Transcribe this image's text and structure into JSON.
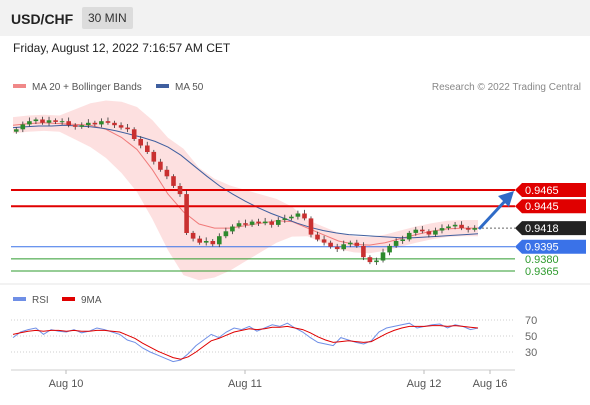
{
  "header": {
    "symbol": "USD/CHF",
    "timeframe": "30 MIN"
  },
  "timestamp": "Friday, August 12, 2022 7:16:57 AM CET",
  "legend": {
    "bb_label": "MA 20 + Bollinger Bands",
    "ma50_label": "MA 50",
    "copyright": "Research © 2022 Trading Central"
  },
  "rsi_legend": {
    "rsi_label": "RSI",
    "ma_label": "9MA"
  },
  "colors": {
    "resistance": "#e00000",
    "support_blue": "#3a72e8",
    "support_green": "#2e9b2e",
    "bb_fill": "#fcd6d6",
    "ma20": "#f07a7a",
    "ma50": "#3f5f9f",
    "candle_up": "#2d8a2d",
    "candle_down": "#c93030",
    "rsi": "#6f8fe6",
    "rsi_ma": "#e00000",
    "arrow": "#2f6bc7",
    "last_price": "#222222"
  },
  "chart_data": [
    {
      "type": "line",
      "title": "USD/CHF",
      "x_ticks": [
        "Aug 10",
        "Aug 11",
        "Aug 12",
        "Aug 16"
      ],
      "ylim": [
        0.935,
        0.955
      ],
      "levels": [
        {
          "label": "0.9465",
          "value": 0.9465,
          "kind": "resistance"
        },
        {
          "label": "0.9445",
          "value": 0.9445,
          "kind": "resistance"
        },
        {
          "label": "0.9395",
          "value": 0.9395,
          "kind": "support_blue"
        },
        {
          "label": "0.9380",
          "value": 0.938,
          "kind": "support_green"
        },
        {
          "label": "0.9365",
          "value": 0.9365,
          "kind": "support_green"
        }
      ],
      "last_price": {
        "label": "0.9418",
        "value": 0.9418
      },
      "series": [
        {
          "name": "Price",
          "values": [
            0.954,
            0.9546,
            0.955,
            0.9552,
            0.9548,
            0.9551,
            0.9549,
            0.955,
            0.9545,
            0.9543,
            0.9545,
            0.9548,
            0.9546,
            0.955,
            0.9548,
            0.9545,
            0.9542,
            0.954,
            0.9528,
            0.952,
            0.9512,
            0.95,
            0.949,
            0.9482,
            0.947,
            0.946,
            0.9412,
            0.9405,
            0.94,
            0.9402,
            0.9398,
            0.9408,
            0.9414,
            0.942,
            0.9424,
            0.9422,
            0.9426,
            0.9424,
            0.9426,
            0.9422,
            0.9428,
            0.943,
            0.9432,
            0.9436,
            0.943,
            0.941,
            0.9404,
            0.94,
            0.9395,
            0.9392,
            0.9398,
            0.94,
            0.9396,
            0.9382,
            0.9376,
            0.9378,
            0.9388,
            0.9396,
            0.9402,
            0.9404,
            0.9412,
            0.9416,
            0.9414,
            0.941,
            0.9415,
            0.9418,
            0.942,
            0.9422,
            0.9418,
            0.9416,
            0.9418
          ]
        },
        {
          "name": "MA 50",
          "values": [
            0.9542,
            0.9543,
            0.9544,
            0.9544,
            0.9545,
            0.9544,
            0.9543,
            0.9541,
            0.9538,
            0.9534,
            0.953,
            0.9525,
            0.9518,
            0.9508,
            0.9495,
            0.9482,
            0.947,
            0.946,
            0.9451,
            0.9443,
            0.9436,
            0.943,
            0.9424,
            0.9419,
            0.9415,
            0.9412,
            0.941,
            0.9409,
            0.9408,
            0.9407,
            0.9406,
            0.9406,
            0.9407,
            0.9408,
            0.9409,
            0.941,
            0.9411
          ]
        },
        {
          "name": "MA 20 + Bollinger Bands",
          "values": [
            0.9545,
            0.9547,
            0.9548,
            0.9547,
            0.9546,
            0.9545,
            0.954,
            0.953,
            0.9515,
            0.949,
            0.946,
            0.9438,
            0.9423,
            0.9418,
            0.9418,
            0.9421,
            0.9424,
            0.9427,
            0.9426,
            0.9418,
            0.941,
            0.9402,
            0.9398,
            0.9397,
            0.94,
            0.9405,
            0.941,
            0.9414,
            0.9417,
            0.9418,
            0.9418
          ]
        }
      ]
    },
    {
      "type": "line",
      "title": "RSI",
      "y_ticks": [
        "70",
        "50",
        "30"
      ],
      "ylim": [
        0,
        100
      ],
      "series": [
        {
          "name": "RSI",
          "values": [
            48,
            55,
            58,
            60,
            52,
            58,
            56,
            55,
            58,
            54,
            56,
            60,
            58,
            55,
            52,
            45,
            42,
            35,
            30,
            26,
            22,
            18,
            20,
            28,
            38,
            45,
            52,
            48,
            55,
            60,
            58,
            62,
            56,
            60,
            64,
            62,
            66,
            60,
            55,
            48,
            42,
            40,
            38,
            48,
            45,
            42,
            40,
            44,
            55,
            60,
            62,
            64,
            66,
            60,
            62,
            64,
            65,
            60,
            64,
            62,
            58,
            60
          ]
        },
        {
          "name": "9MA",
          "values": [
            52,
            54,
            56,
            57,
            56,
            57,
            57,
            56,
            57,
            56,
            56,
            57,
            57,
            56,
            55,
            51,
            47,
            41,
            36,
            31,
            27,
            23,
            21,
            24,
            30,
            37,
            44,
            47,
            51,
            55,
            57,
            59,
            58,
            59,
            61,
            61,
            62,
            60,
            58,
            54,
            49,
            45,
            42,
            43,
            44,
            43,
            42,
            43,
            48,
            53,
            57,
            60,
            62,
            62,
            62,
            63,
            63,
            62,
            63,
            62,
            61,
            60
          ]
        }
      ]
    }
  ]
}
